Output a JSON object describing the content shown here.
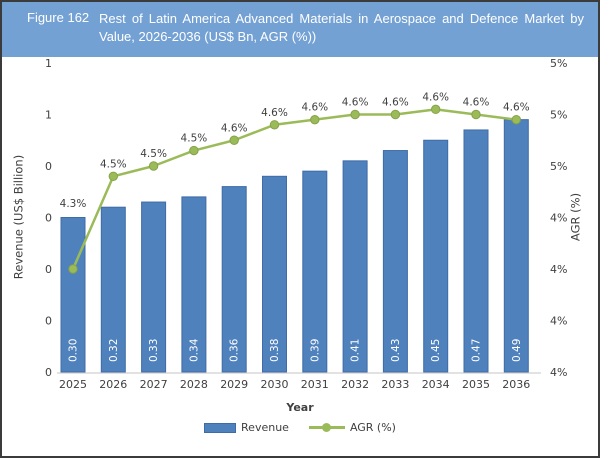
{
  "figure": {
    "label": "Figure 162",
    "title_line1": "Rest of Latin America Advanced Materials in Aerospace and Defence Market by",
    "title_line2": "Value, 2026-2036 (US$ Bn, AGR (%))"
  },
  "axes": {
    "left_title": "Revenue (US$ Billion)",
    "right_title": "AGR (%)",
    "x_title": "Year",
    "left_ticks": [
      "0",
      "0",
      "0",
      "0",
      "0",
      "1",
      "1"
    ],
    "right_ticks": [
      "4%",
      "4%",
      "4%",
      "4%",
      "5%",
      "5%",
      "5%"
    ]
  },
  "legend": {
    "revenue": "Revenue",
    "agr": "AGR (%)"
  },
  "colors": {
    "frame_border": "#3b3b3b",
    "header_bg": "#74a1d4",
    "header_text": "#ffffff",
    "bar_fill": "#4f81bd",
    "bar_stroke": "#3f6ca6",
    "bar_label": "#ffffff",
    "line": "#9bbb59",
    "line_edge": "#85a249",
    "axis_text": "#404040",
    "baseline": "#d9d9d9"
  },
  "chart_data": {
    "type": "bar",
    "subtype": "column-and-line combo, dual y-axis",
    "title": "Rest of Latin America Advanced Materials in Aerospace and Defence Market by Value, 2026-2036 (US$ Bn, AGR (%))",
    "categories": [
      "2025",
      "2026",
      "2027",
      "2028",
      "2029",
      "2030",
      "2031",
      "2032",
      "2033",
      "2034",
      "2035",
      "2036"
    ],
    "series": [
      {
        "name": "Revenue",
        "type": "bar",
        "axis": "left",
        "values": [
          0.3,
          0.32,
          0.33,
          0.34,
          0.36,
          0.38,
          0.39,
          0.41,
          0.43,
          0.45,
          0.47,
          0.49
        ],
        "labels": [
          "0.30",
          "0.32",
          "0.33",
          "0.34",
          "0.36",
          "0.38",
          "0.39",
          "0.41",
          "0.43",
          "0.45",
          "0.47",
          "0.49"
        ]
      },
      {
        "name": "AGR (%)",
        "type": "line",
        "axis": "right",
        "values": [
          4.3,
          4.48,
          4.5,
          4.53,
          4.55,
          4.58,
          4.59,
          4.6,
          4.6,
          4.61,
          4.6,
          4.59
        ],
        "labels": [
          "4.3%",
          "4.5%",
          "4.5%",
          "4.5%",
          "4.6%",
          "4.6%",
          "4.6%",
          "4.6%",
          "4.6%",
          "4.6%",
          "4.6%",
          "4.6%"
        ]
      }
    ],
    "left_axis": {
      "title": "Revenue (US$ Billion)",
      "min": 0,
      "max": 0.6,
      "tick_count": 7
    },
    "right_axis": {
      "title": "AGR (%)",
      "min": 4.1,
      "max": 4.7,
      "tick_count": 7
    },
    "xlabel": "Year",
    "grid": false,
    "legend_position": "bottom"
  }
}
